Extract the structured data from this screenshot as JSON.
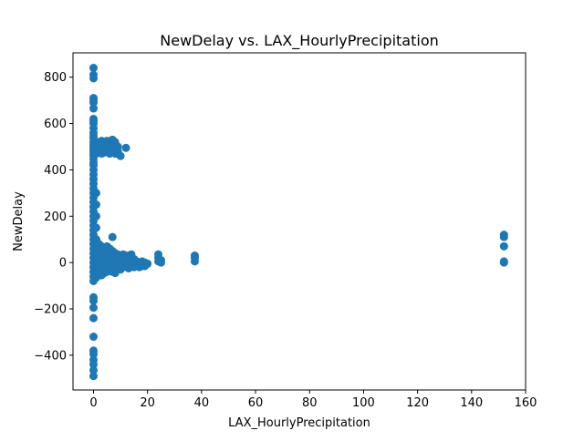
{
  "chart_data": {
    "type": "scatter",
    "title": "NewDelay vs. LAX_HourlyPrecipitation",
    "xlabel": "LAX_HourlyPrecipitation",
    "ylabel": "NewDelay",
    "xlim": [
      -7.6,
      160
    ],
    "ylim": [
      -550,
      905
    ],
    "xticks": [
      0,
      20,
      40,
      60,
      80,
      100,
      120,
      140,
      160
    ],
    "yticks": [
      -400,
      -200,
      0,
      200,
      400,
      600,
      800
    ],
    "grid": false,
    "color": "#1f77b4",
    "points": [
      [
        0,
        840
      ],
      [
        0,
        810
      ],
      [
        0,
        795
      ],
      [
        0,
        710
      ],
      [
        0,
        700
      ],
      [
        0,
        690
      ],
      [
        0,
        665
      ],
      [
        0,
        620
      ],
      [
        0,
        610
      ],
      [
        0,
        600
      ],
      [
        0,
        580
      ],
      [
        0,
        560
      ],
      [
        0,
        545
      ],
      [
        0,
        535
      ],
      [
        0,
        520
      ],
      [
        0,
        510
      ],
      [
        0,
        500
      ],
      [
        0,
        490
      ],
      [
        0,
        480
      ],
      [
        0,
        470
      ],
      [
        0,
        460
      ],
      [
        0,
        445
      ],
      [
        0,
        430
      ],
      [
        0,
        420
      ],
      [
        0,
        400
      ],
      [
        0,
        380
      ],
      [
        0,
        360
      ],
      [
        0,
        340
      ],
      [
        0,
        320
      ],
      [
        0,
        300
      ],
      [
        0,
        280
      ],
      [
        0,
        260
      ],
      [
        0,
        240
      ],
      [
        0,
        220
      ],
      [
        0,
        200
      ],
      [
        0,
        180
      ],
      [
        0,
        160
      ],
      [
        0,
        140
      ],
      [
        0,
        120
      ],
      [
        0,
        100
      ],
      [
        0,
        80
      ],
      [
        0,
        60
      ],
      [
        0,
        40
      ],
      [
        0,
        20
      ],
      [
        0,
        0
      ],
      [
        0,
        -20
      ],
      [
        0,
        -40
      ],
      [
        0,
        -60
      ],
      [
        0,
        -80
      ],
      [
        0,
        -150
      ],
      [
        0,
        -165
      ],
      [
        0,
        -195
      ],
      [
        0,
        -240
      ],
      [
        0,
        -320
      ],
      [
        0,
        -380
      ],
      [
        0,
        -395
      ],
      [
        0,
        -420
      ],
      [
        0,
        -440
      ],
      [
        0,
        -465
      ],
      [
        0,
        -490
      ],
      [
        1,
        515
      ],
      [
        1,
        490
      ],
      [
        1,
        470
      ],
      [
        1,
        300
      ],
      [
        1,
        250
      ],
      [
        1,
        200
      ],
      [
        1,
        150
      ],
      [
        1,
        100
      ],
      [
        1,
        50
      ],
      [
        1,
        20
      ],
      [
        1,
        -10
      ],
      [
        1,
        -40
      ],
      [
        1,
        -65
      ],
      [
        2,
        520
      ],
      [
        2,
        500
      ],
      [
        2,
        475
      ],
      [
        2,
        80
      ],
      [
        2,
        50
      ],
      [
        2,
        20
      ],
      [
        2,
        0
      ],
      [
        2,
        -30
      ],
      [
        2,
        -50
      ],
      [
        3,
        525
      ],
      [
        3,
        505
      ],
      [
        3,
        485
      ],
      [
        3,
        470
      ],
      [
        3,
        70
      ],
      [
        3,
        40
      ],
      [
        3,
        10
      ],
      [
        3,
        -20
      ],
      [
        3,
        -55
      ],
      [
        4,
        520
      ],
      [
        4,
        495
      ],
      [
        4,
        475
      ],
      [
        4,
        60
      ],
      [
        4,
        30
      ],
      [
        4,
        0
      ],
      [
        4,
        -25
      ],
      [
        4,
        -45
      ],
      [
        5,
        525
      ],
      [
        5,
        500
      ],
      [
        5,
        480
      ],
      [
        5,
        70
      ],
      [
        5,
        40
      ],
      [
        5,
        10
      ],
      [
        5,
        -20
      ],
      [
        5,
        -40
      ],
      [
        6,
        515
      ],
      [
        6,
        490
      ],
      [
        6,
        470
      ],
      [
        6,
        60
      ],
      [
        6,
        30
      ],
      [
        6,
        0
      ],
      [
        6,
        -30
      ],
      [
        7,
        530
      ],
      [
        7,
        505
      ],
      [
        7,
        485
      ],
      [
        7,
        110
      ],
      [
        7,
        50
      ],
      [
        7,
        20
      ],
      [
        7,
        -10
      ],
      [
        7,
        -40
      ],
      [
        8,
        520
      ],
      [
        8,
        495
      ],
      [
        8,
        470
      ],
      [
        8,
        40
      ],
      [
        8,
        10
      ],
      [
        8,
        -20
      ],
      [
        8,
        -45
      ],
      [
        9,
        500
      ],
      [
        9,
        480
      ],
      [
        9,
        35
      ],
      [
        9,
        5
      ],
      [
        9,
        -25
      ],
      [
        10,
        460
      ],
      [
        10,
        30
      ],
      [
        10,
        0
      ],
      [
        10,
        -30
      ],
      [
        11,
        35
      ],
      [
        11,
        10
      ],
      [
        11,
        -20
      ],
      [
        12,
        495
      ],
      [
        12,
        30
      ],
      [
        12,
        5
      ],
      [
        12,
        -15
      ],
      [
        13,
        30
      ],
      [
        13,
        0
      ],
      [
        13,
        -25
      ],
      [
        14,
        35
      ],
      [
        14,
        10
      ],
      [
        14,
        -10
      ],
      [
        15,
        15
      ],
      [
        15,
        -5
      ],
      [
        15,
        -20
      ],
      [
        16,
        5
      ],
      [
        16,
        -15
      ],
      [
        17,
        0
      ],
      [
        17,
        -20
      ],
      [
        18,
        5
      ],
      [
        18,
        -15
      ],
      [
        19,
        0
      ],
      [
        19,
        -15
      ],
      [
        20,
        -5
      ],
      [
        24,
        35
      ],
      [
        24,
        20
      ],
      [
        24,
        5
      ],
      [
        25,
        10
      ],
      [
        25,
        0
      ],
      [
        37.5,
        30
      ],
      [
        37.5,
        20
      ],
      [
        37.5,
        5
      ],
      [
        152,
        120
      ],
      [
        152,
        110
      ],
      [
        152,
        70
      ],
      [
        152,
        5
      ],
      [
        152,
        0
      ]
    ]
  }
}
